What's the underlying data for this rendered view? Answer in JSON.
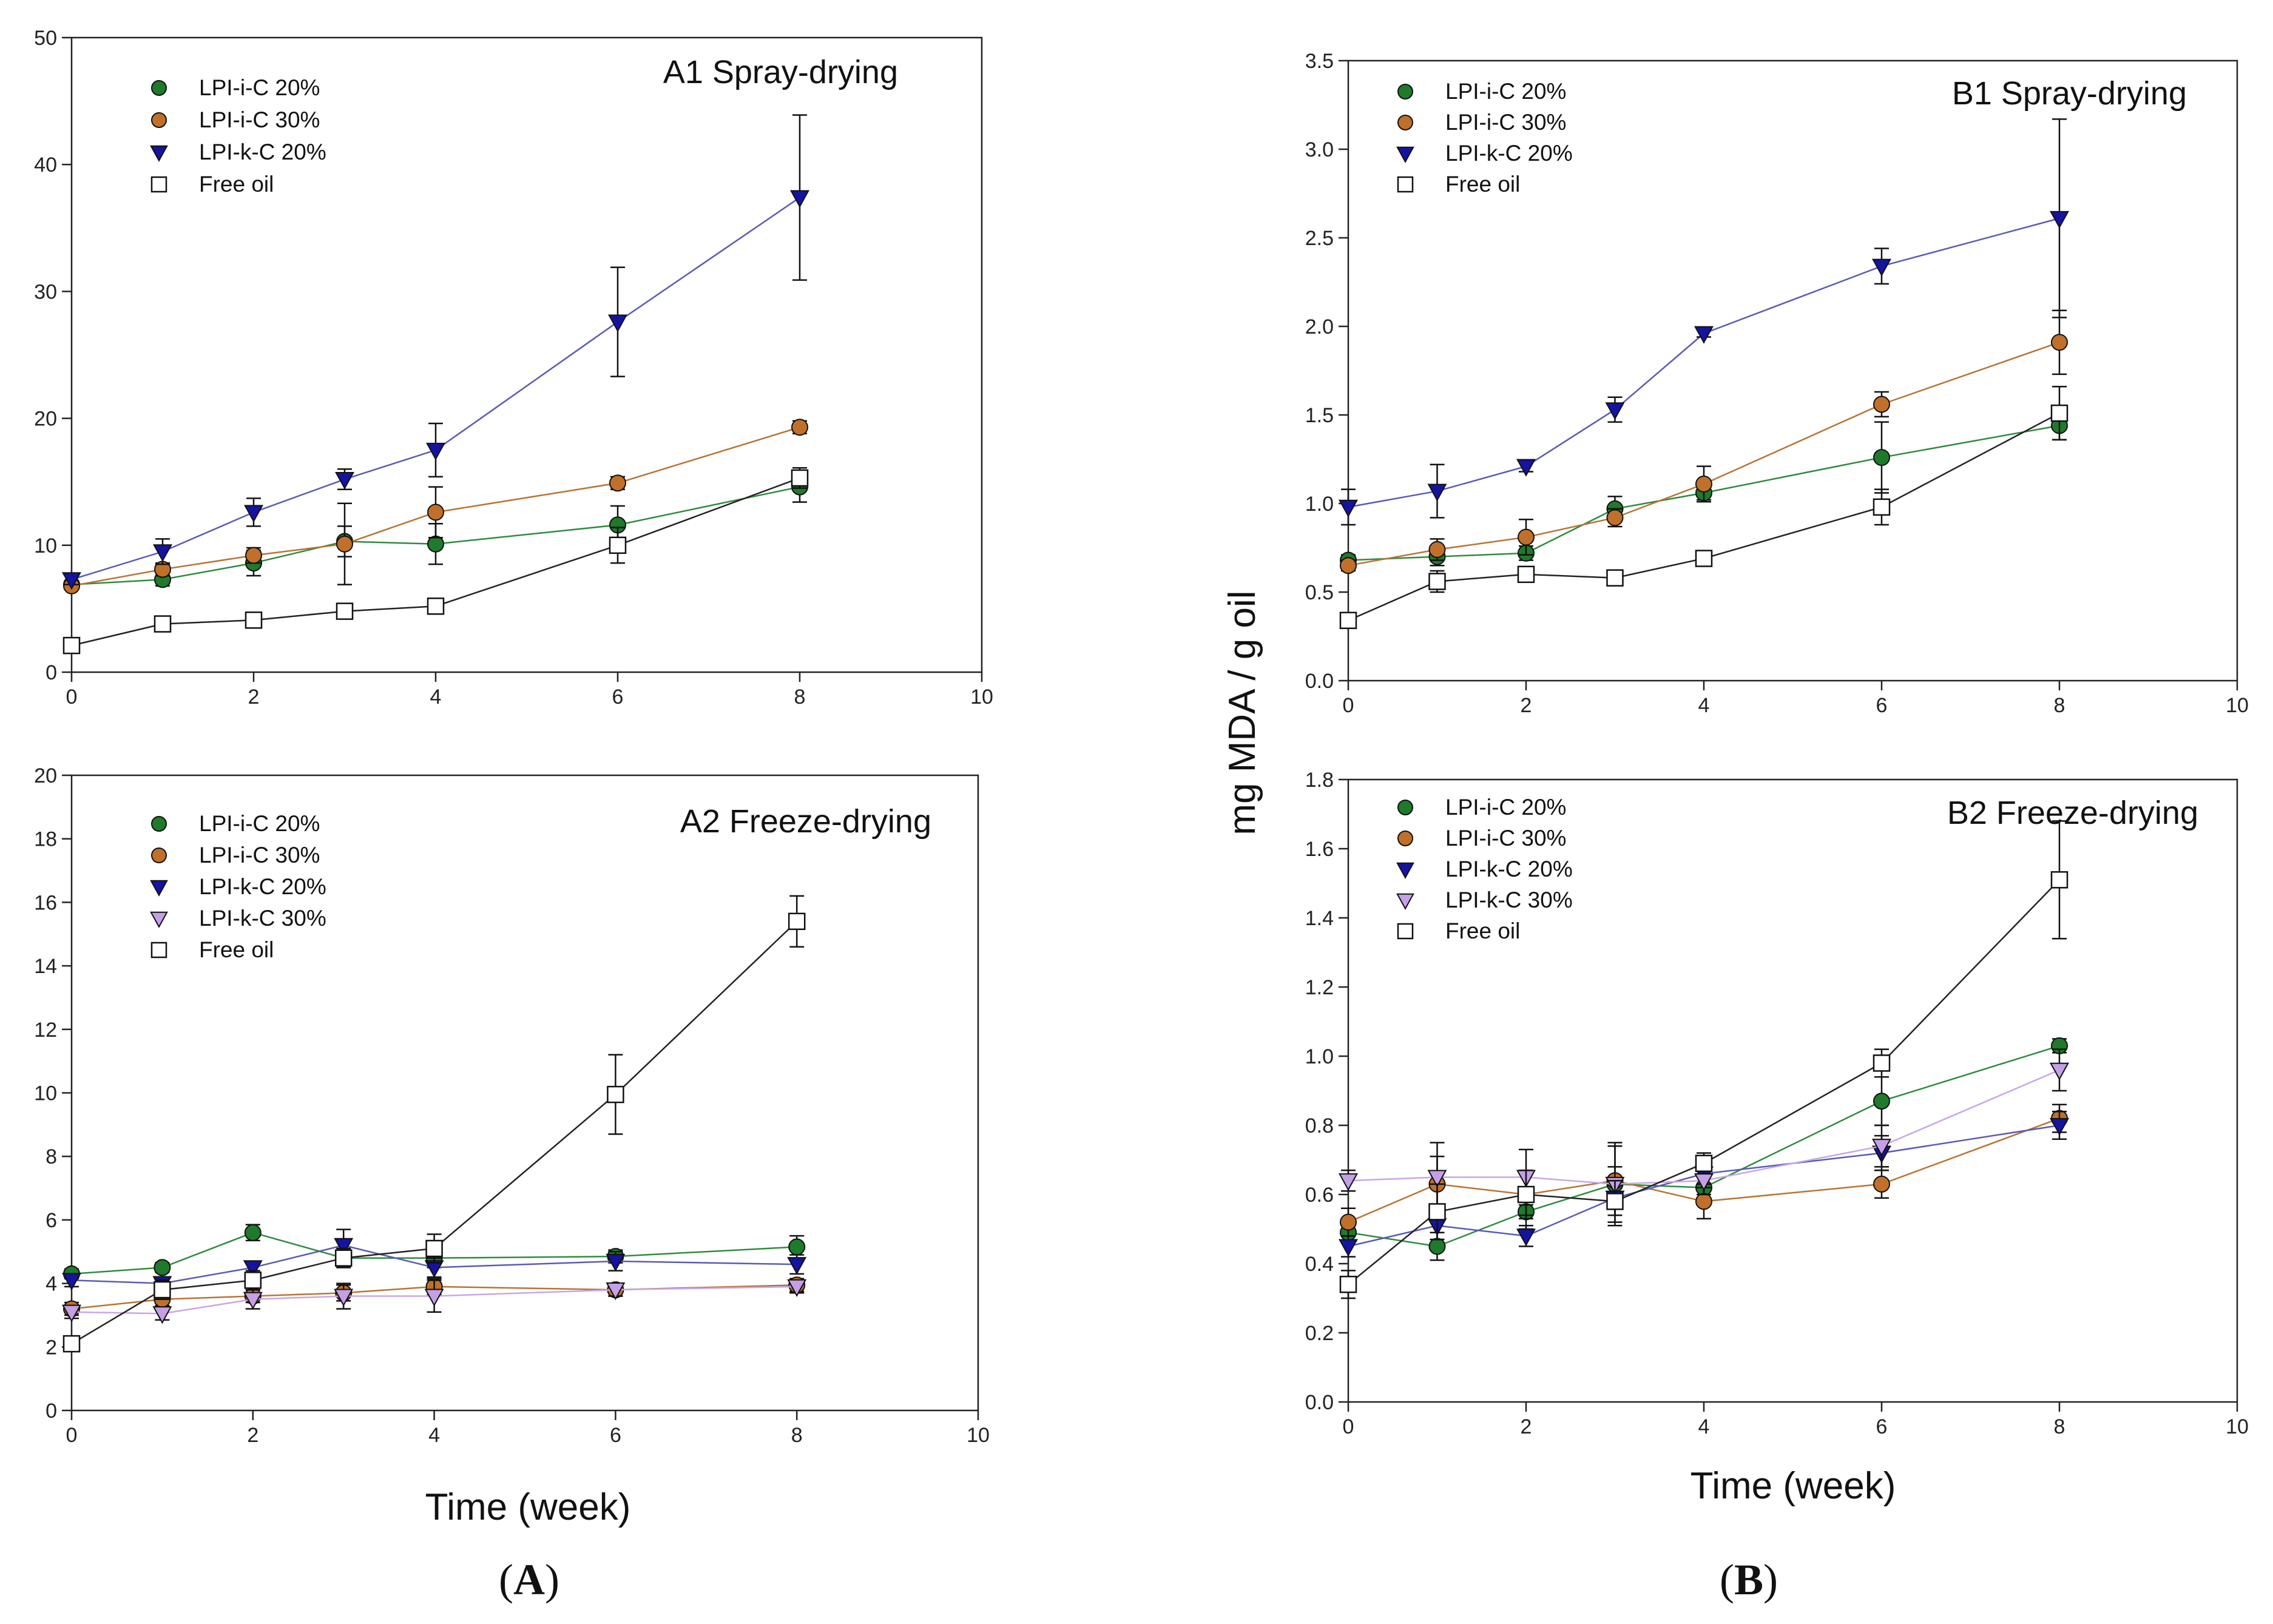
{
  "figure": {
    "x_label_left": "Time (week)",
    "x_label_right": "Time (week)",
    "y_label_right": "mg MDA / g oil",
    "sublabel_a_letter": "A",
    "sublabel_b_letter": "B",
    "sublabel_open": "(",
    "sublabel_close": ")"
  },
  "series_styles": {
    "LPI-i-C 20%": {
      "marker": "circle",
      "fill": "#1f7a2c",
      "line": "#2e8b3e"
    },
    "LPI-i-C 30%": {
      "marker": "circle",
      "fill": "#c0702a",
      "line": "#b87333"
    },
    "LPI-k-C 20%": {
      "marker": "triangle-down",
      "fill": "#1414a0",
      "line": "#5a5ab4"
    },
    "LPI-k-C 30%": {
      "marker": "triangle-down",
      "fill": "#c4a0e6",
      "line": "#c8a6e8"
    },
    "Free oil": {
      "marker": "square",
      "fill": "#ffffff",
      "line": "#222222"
    }
  },
  "chart_data": [
    {
      "id": "A1",
      "type": "line",
      "title": "A1 Spray-drying",
      "xlabel": "Time (week)",
      "ylabel": "",
      "xlim": [
        0,
        10
      ],
      "ylim": [
        0,
        50
      ],
      "xticks": [
        0,
        2,
        4,
        6,
        8,
        10
      ],
      "yticks": [
        0,
        10,
        20,
        30,
        40,
        50
      ],
      "legend_position": "top-left",
      "x": [
        0,
        1,
        2,
        3,
        4,
        6,
        8
      ],
      "series": [
        {
          "name": "LPI-i-C 20%",
          "values": [
            6.9,
            7.3,
            8.6,
            10.3,
            10.1,
            11.6,
            14.6
          ],
          "errors": [
            0.3,
            0.5,
            1.0,
            1.2,
            1.6,
            1.5,
            1.2
          ]
        },
        {
          "name": "LPI-i-C 30%",
          "values": [
            6.8,
            8.1,
            9.2,
            10.1,
            12.6,
            14.9,
            19.3
          ],
          "errors": [
            0.3,
            0.5,
            0.6,
            3.2,
            2.0,
            0.5,
            0.5
          ]
        },
        {
          "name": "LPI-k-C 20%",
          "values": [
            7.3,
            9.5,
            12.6,
            15.2,
            17.5,
            27.6,
            37.4
          ],
          "errors": [
            0.4,
            1.0,
            1.1,
            0.8,
            2.1,
            4.3,
            6.5
          ]
        },
        {
          "name": "Free oil",
          "values": [
            2.1,
            3.8,
            4.1,
            4.8,
            5.2,
            10.0,
            15.3
          ],
          "errors": [
            0.2,
            0.2,
            0.3,
            0.3,
            0.3,
            1.4,
            0.8
          ]
        }
      ]
    },
    {
      "id": "A2",
      "type": "line",
      "title": "A2 Freeze-drying",
      "xlabel": "Time (week)",
      "ylabel": "",
      "xlim": [
        0,
        10
      ],
      "ylim": [
        0,
        20
      ],
      "xticks": [
        0,
        2,
        4,
        6,
        8,
        10
      ],
      "yticks": [
        0,
        2,
        4,
        6,
        8,
        10,
        12,
        14,
        16,
        18,
        20
      ],
      "legend_position": "top-left",
      "x": [
        0,
        1,
        2,
        3,
        4,
        6,
        8
      ],
      "series": [
        {
          "name": "LPI-i-C 20%",
          "values": [
            4.3,
            4.5,
            5.6,
            4.8,
            4.8,
            4.85,
            5.15
          ],
          "errors": [
            0.15,
            0.15,
            0.25,
            0.3,
            0.3,
            0.2,
            0.35
          ]
        },
        {
          "name": "LPI-i-C 30%",
          "values": [
            3.2,
            3.5,
            3.6,
            3.7,
            3.9,
            3.8,
            3.95
          ],
          "errors": [
            0.2,
            0.2,
            0.2,
            0.25,
            0.25,
            0.2,
            0.2
          ]
        },
        {
          "name": "LPI-k-C 20%",
          "values": [
            4.1,
            4.0,
            4.5,
            5.2,
            4.5,
            4.7,
            4.6
          ],
          "errors": [
            0.2,
            0.2,
            0.2,
            0.5,
            0.3,
            0.3,
            0.3
          ]
        },
        {
          "name": "LPI-k-C 30%",
          "values": [
            3.1,
            3.05,
            3.5,
            3.6,
            3.6,
            3.8,
            3.9
          ],
          "errors": [
            0.2,
            0.2,
            0.3,
            0.4,
            0.5,
            0.2,
            0.2
          ]
        },
        {
          "name": "Free oil",
          "values": [
            2.1,
            3.8,
            4.1,
            4.8,
            5.1,
            9.95,
            15.4
          ],
          "errors": [
            0.2,
            0.3,
            0.3,
            0.3,
            0.45,
            1.25,
            0.8
          ]
        }
      ]
    },
    {
      "id": "B1",
      "type": "line",
      "title": "B1 Spray-drying",
      "xlabel": "Time (week)",
      "ylabel": "mg MDA / g oil",
      "xlim": [
        0,
        10
      ],
      "ylim": [
        0,
        3.5
      ],
      "xticks": [
        0,
        2,
        4,
        6,
        8,
        10
      ],
      "yticks": [
        0.0,
        0.5,
        1.0,
        1.5,
        2.0,
        2.5,
        3.0,
        3.5
      ],
      "legend_position": "top-left",
      "x": [
        0,
        1,
        2,
        3,
        4,
        6,
        8
      ],
      "series": [
        {
          "name": "LPI-i-C 20%",
          "values": [
            0.68,
            0.7,
            0.72,
            0.97,
            1.06,
            1.26,
            1.44
          ],
          "errors": [
            0.03,
            0.05,
            0.04,
            0.07,
            0.04,
            0.2,
            0.08
          ]
        },
        {
          "name": "LPI-i-C 30%",
          "values": [
            0.65,
            0.74,
            0.81,
            0.92,
            1.11,
            1.56,
            1.91
          ],
          "errors": [
            0.03,
            0.06,
            0.1,
            0.05,
            0.1,
            0.07,
            0.18
          ]
        },
        {
          "name": "LPI-k-C 20%",
          "values": [
            0.98,
            1.07,
            1.21,
            1.53,
            1.96,
            2.34,
            2.61
          ],
          "errors": [
            0.1,
            0.15,
            0.03,
            0.07,
            0.02,
            0.1,
            0.56
          ]
        },
        {
          "name": "Free oil",
          "values": [
            0.34,
            0.56,
            0.6,
            0.58,
            0.69,
            0.98,
            1.51
          ],
          "errors": [
            0.03,
            0.06,
            0.04,
            0.03,
            0.03,
            0.1,
            0.15
          ]
        }
      ]
    },
    {
      "id": "B2",
      "type": "line",
      "title": "B2 Freeze-drying",
      "xlabel": "Time (week)",
      "ylabel": "mg MDA / g oil",
      "xlim": [
        0,
        10
      ],
      "ylim": [
        0,
        1.8
      ],
      "xticks": [
        0,
        2,
        4,
        6,
        8,
        10
      ],
      "yticks": [
        0.0,
        0.2,
        0.4,
        0.6,
        0.8,
        1.0,
        1.2,
        1.4,
        1.6,
        1.8
      ],
      "legend_position": "top-left",
      "x": [
        0,
        1,
        2,
        3,
        4,
        6,
        8
      ],
      "series": [
        {
          "name": "LPI-i-C 20%",
          "values": [
            0.49,
            0.45,
            0.55,
            0.63,
            0.62,
            0.87,
            1.03
          ],
          "errors": [
            0.03,
            0.04,
            0.05,
            0.05,
            0.04,
            0.07,
            0.02
          ]
        },
        {
          "name": "LPI-i-C 30%",
          "values": [
            0.52,
            0.63,
            0.6,
            0.64,
            0.58,
            0.63,
            0.82
          ],
          "errors": [
            0.04,
            0.08,
            0.06,
            0.1,
            0.05,
            0.04,
            0.04
          ]
        },
        {
          "name": "LPI-k-C 20%",
          "values": [
            0.45,
            0.51,
            0.48,
            0.59,
            0.66,
            0.72,
            0.8
          ],
          "errors": [
            0.03,
            0.04,
            0.03,
            0.05,
            0.04,
            0.05,
            0.04
          ]
        },
        {
          "name": "LPI-k-C 30%",
          "values": [
            0.64,
            0.65,
            0.65,
            0.63,
            0.64,
            0.74,
            0.96
          ],
          "errors": [
            0.03,
            0.1,
            0.08,
            0.12,
            0.04,
            0.06,
            0.06
          ]
        },
        {
          "name": "Free oil",
          "values": [
            0.34,
            0.55,
            0.6,
            0.58,
            0.69,
            0.98,
            1.51
          ],
          "errors": [
            0.04,
            0.08,
            0.07,
            0.06,
            0.03,
            0.04,
            0.17
          ]
        }
      ]
    }
  ]
}
